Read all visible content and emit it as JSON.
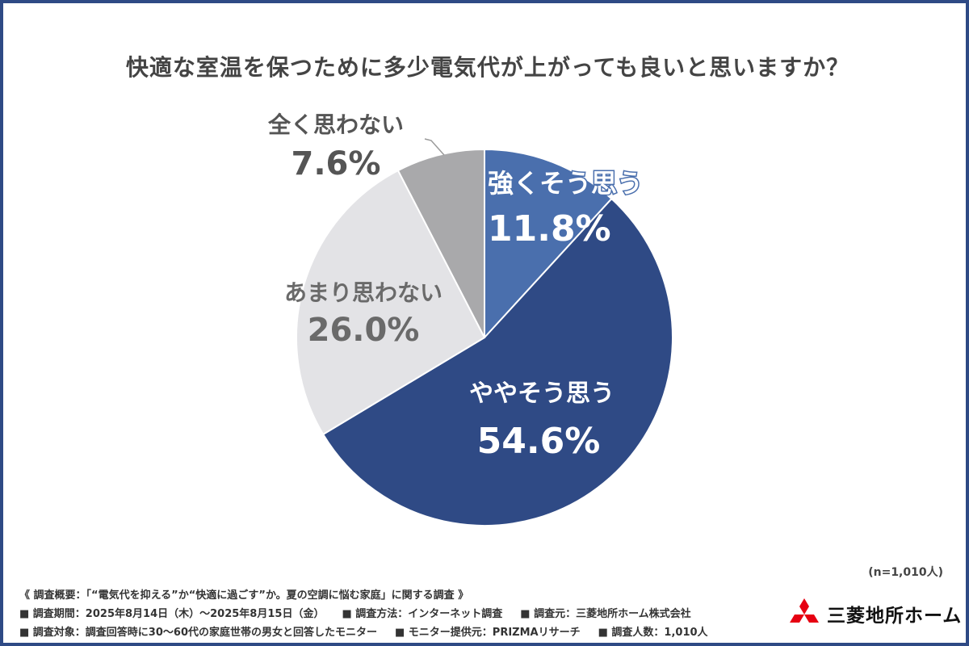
{
  "chart_data": {
    "type": "pie",
    "title": "快適な室温を保つために多少電気代が上がっても良いと思いますか？",
    "slices": [
      {
        "label": "強くそう思う",
        "value": 11.8,
        "value_label": "11.8%",
        "color": "#4a6fad",
        "text_color": "#ffffff"
      },
      {
        "label": "ややそう思う",
        "value": 54.6,
        "value_label": "54.6%",
        "color": "#2f4a85",
        "text_color": "#ffffff"
      },
      {
        "label": "あまり思わない",
        "value": 26.0,
        "value_label": "26.0%",
        "color": "#e3e3e6",
        "text_color": "#6a6a6a"
      },
      {
        "label": "全く思わない",
        "value": 7.6,
        "value_label": "7.6%",
        "color": "#a9a9ab",
        "text_color": "#555555"
      }
    ]
  },
  "sample_size": "(n=1,010人)",
  "footnotes": {
    "summary": "《 調査概要：「“電気代を抑える”か“快適に過ごす”か。夏の空調に悩む家庭」に関する調査 》",
    "period": "■ 調査期間：2025年8月14日（木）〜2025年8月15日（金）",
    "method": "■ 調査方法：インターネット調査",
    "organizer": "■ 調査元：三菱地所ホーム株式会社",
    "target": "■ 調査対象：調査回答時に30〜60代の家庭世帯の男女と回答したモニター",
    "provider": "■ モニター提供元：PRIZMAリサーチ",
    "count": "■ 調査人数：1,010人"
  },
  "logo": {
    "text": "三菱地所ホーム",
    "icon": "three-diamonds-icon",
    "icon_color": "#e60012"
  }
}
